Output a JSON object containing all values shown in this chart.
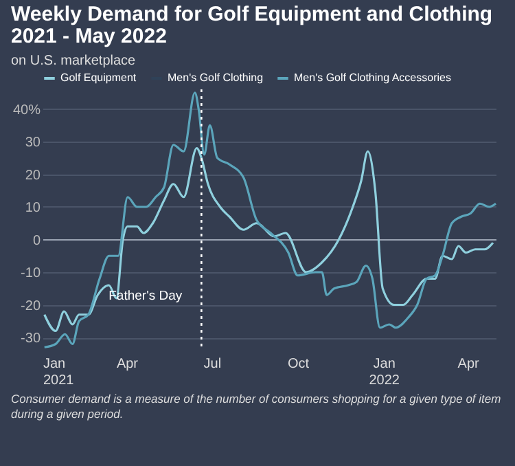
{
  "chart_data": {
    "type": "line",
    "title": "Weekly Demand for Golf Equipment and Clothing 2021 -  May 2022",
    "subtitle": "on U.S. marketplace",
    "series": [
      {
        "name": "Golf Equipment",
        "color": "#8fd0de",
        "x": [
          "2021-01-03",
          "2021-01-15",
          "2021-01-24",
          "2021-02-02",
          "2021-02-09",
          "2021-02-19",
          "2021-03-01",
          "2021-03-13",
          "2021-03-21",
          "2021-03-28",
          "2021-04-02",
          "2021-04-12",
          "2021-04-19",
          "2021-04-29",
          "2021-05-11",
          "2021-05-21",
          "2021-06-01",
          "2021-06-15",
          "2021-06-20",
          "2021-06-27",
          "2021-07-10",
          "2021-07-20",
          "2021-08-04",
          "2021-08-18",
          "2021-09-06",
          "2021-09-18",
          "2021-10-10",
          "2021-10-27",
          "2021-11-14",
          "2021-11-29",
          "2021-12-08",
          "2021-12-15",
          "2021-12-23",
          "2021-12-31",
          "2022-01-12",
          "2022-01-22",
          "2022-02-01",
          "2022-02-16",
          "2022-02-25",
          "2022-03-05",
          "2022-03-15",
          "2022-03-22",
          "2022-03-30",
          "2022-04-09",
          "2022-04-19",
          "2022-04-28"
        ],
        "values": [
          -23,
          -28,
          -22,
          -26,
          -23,
          -23,
          -17,
          -14,
          -18,
          0,
          4,
          4,
          2,
          5,
          12,
          17,
          13,
          28,
          25,
          17,
          10,
          7,
          3,
          5,
          1,
          2,
          -10,
          -7,
          0,
          10,
          18,
          27,
          15,
          -15,
          -20,
          -20,
          -17,
          -12,
          -12,
          -5,
          -6,
          -2,
          -4,
          -3,
          -3,
          -1
        ]
      },
      {
        "name": "Men's Golf Clothing",
        "color": "#2f4258"
      },
      {
        "name": "Men's Golf Clothing Accessories",
        "color": "#5ba5bb",
        "x": [
          "2021-01-03",
          "2021-01-15",
          "2021-01-25",
          "2021-02-02",
          "2021-02-09",
          "2021-02-19",
          "2021-03-03",
          "2021-03-13",
          "2021-03-23",
          "2021-04-02",
          "2021-04-12",
          "2021-04-22",
          "2021-05-02",
          "2021-05-11",
          "2021-05-21",
          "2021-06-01",
          "2021-06-13",
          "2021-06-17",
          "2021-06-23",
          "2021-06-29",
          "2021-07-07",
          "2021-07-20",
          "2021-08-04",
          "2021-08-18",
          "2021-09-02",
          "2021-09-21",
          "2021-10-01",
          "2021-10-20",
          "2021-10-27",
          "2021-11-01",
          "2021-11-09",
          "2021-11-24",
          "2021-12-03",
          "2021-12-13",
          "2021-12-20",
          "2021-12-28",
          "2022-01-07",
          "2022-01-14",
          "2022-01-27",
          "2022-02-06",
          "2022-02-16",
          "2022-02-25",
          "2022-03-05",
          "2022-03-15",
          "2022-03-25",
          "2022-04-04",
          "2022-04-14",
          "2022-04-24",
          "2022-05-01"
        ],
        "values": [
          -33,
          -32,
          -29,
          -32,
          -25,
          -23,
          -12,
          -5,
          -5,
          13,
          10,
          10,
          13,
          16,
          29,
          27,
          45,
          40,
          26,
          35,
          25,
          23,
          19,
          6,
          2,
          -4,
          -11,
          -10,
          -10,
          -17,
          -15,
          -14,
          -13,
          -8,
          -12,
          -27,
          -26,
          -27,
          -24,
          -20,
          -12,
          -11,
          -5,
          5,
          7,
          8,
          11,
          10,
          11
        ]
      }
    ],
    "xlim": [
      "2021-01-01",
      "2022-05-01"
    ],
    "xticks": [
      {
        "value": "2021-01-01",
        "label": "Jan 2021"
      },
      {
        "value": "2021-04-01",
        "label": "Apr"
      },
      {
        "value": "2021-07-01",
        "label": "Jul"
      },
      {
        "value": "2021-10-01",
        "label": "Oct"
      },
      {
        "value": "2022-01-01",
        "label": "Jan 2022"
      },
      {
        "value": "2022-04-01",
        "label": "Apr"
      }
    ],
    "ylim": [
      -34,
      46
    ],
    "yticks": [
      -30,
      -20,
      -10,
      0,
      10,
      20,
      30,
      {
        "value": 40,
        "label": "40%"
      }
    ],
    "grid": "y",
    "legend": "top left",
    "ref_lines": [
      {
        "axis": "x",
        "value": "2021-06-20",
        "label": "Father's Day",
        "color": "#ffffff",
        "line_style": "dotted"
      }
    ],
    "annotations": [
      "Consumer demand is a measure of the number of consumers shopping for a given type of item during a given period."
    ]
  }
}
